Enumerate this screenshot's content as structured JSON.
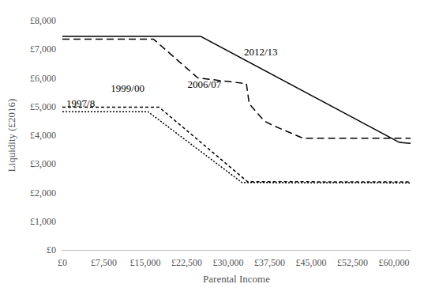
{
  "chart_data": {
    "type": "line",
    "x_label": "Parental Income",
    "y_label": "Liquidity (£2016)",
    "xlim": [
      0,
      63000
    ],
    "ylim": [
      0,
      8000
    ],
    "xticks": [
      {
        "value": 0,
        "label": "£0"
      },
      {
        "value": 7500,
        "label": "£7,500"
      },
      {
        "value": 15000,
        "label": "£15,000"
      },
      {
        "value": 22500,
        "label": "£22,500"
      },
      {
        "value": 30000,
        "label": "£30,000"
      },
      {
        "value": 37500,
        "label": "£37,500"
      },
      {
        "value": 45000,
        "label": "£45,000"
      },
      {
        "value": 52500,
        "label": "£52,500"
      },
      {
        "value": 60000,
        "label": "£60,000"
      }
    ],
    "yticks": [
      {
        "value": 0,
        "label": "£0"
      },
      {
        "value": 1000,
        "label": "£1,000"
      },
      {
        "value": 2000,
        "label": "£2,000"
      },
      {
        "value": 3000,
        "label": "£3,000"
      },
      {
        "value": 4000,
        "label": "£4,000"
      },
      {
        "value": 5000,
        "label": "£5,000"
      },
      {
        "value": 6000,
        "label": "£6,000"
      },
      {
        "value": 7000,
        "label": "£7,000"
      },
      {
        "value": 8000,
        "label": "£8,000"
      }
    ],
    "grid": false,
    "series": [
      {
        "name": "2012/13",
        "color": "#000000",
        "line_style": "solid",
        "x": [
          0,
          25000,
          61000,
          63000
        ],
        "values": [
          7450,
          7450,
          3750,
          3720
        ]
      },
      {
        "name": "2006/07",
        "color": "#000000",
        "line_style": "long-dash",
        "x": [
          0,
          16500,
          24500,
          33300,
          33800,
          36500,
          38000,
          43500,
          63000
        ],
        "values": [
          7350,
          7350,
          6000,
          5800,
          5100,
          4500,
          4350,
          3900,
          3900
        ]
      },
      {
        "name": "1999/00",
        "color": "#000000",
        "line_style": "dash",
        "x": [
          0,
          17500,
          33500,
          63000
        ],
        "values": [
          4980,
          4980,
          2380,
          2370
        ]
      },
      {
        "name": "1997/8",
        "color": "#000000",
        "line_style": "dot",
        "x": [
          0,
          15500,
          32500,
          63000
        ],
        "values": [
          4820,
          4820,
          2350,
          2340
        ]
      }
    ],
    "annotations": [
      {
        "text": "2012/13",
        "x": 35900,
        "y": 6920
      },
      {
        "text": "2006/07",
        "x": 25700,
        "y": 5770
      },
      {
        "text": "1999/00",
        "x": 11800,
        "y": 5630
      },
      {
        "text": "1997/8",
        "x": 3300,
        "y": 5130
      }
    ]
  }
}
